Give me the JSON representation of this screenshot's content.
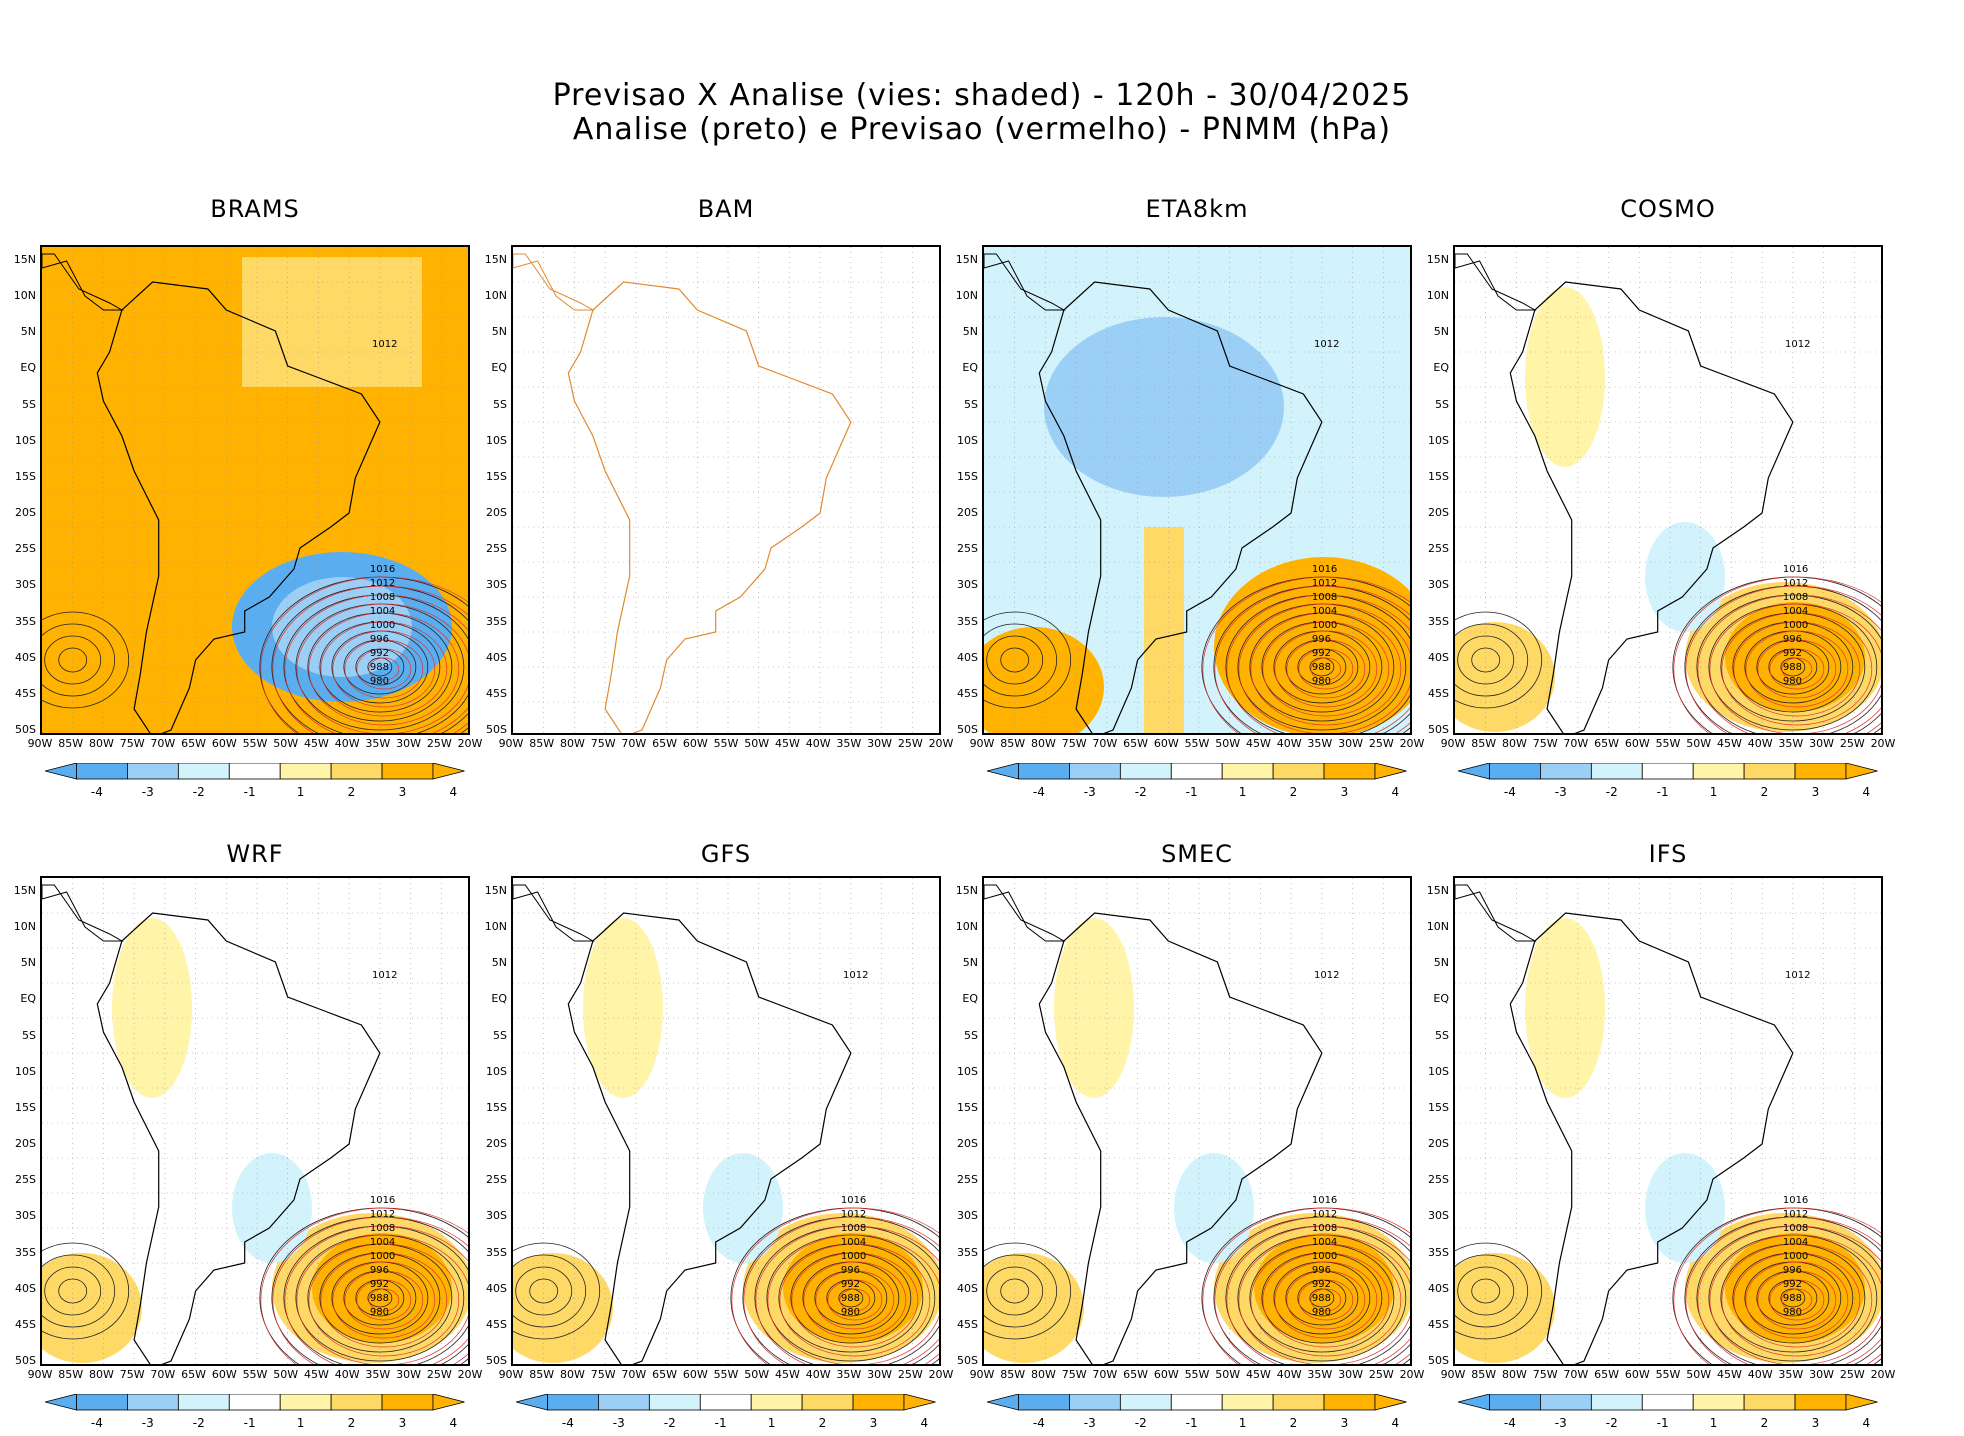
{
  "title_line1": "Previsao X Analise (vies: shaded) - 120h - 30/04/2025",
  "title_line2": "Analise (preto) e Previsao (vermelho) - PNMM (hPa)",
  "panels": [
    {
      "name": "BRAMS",
      "mode": "warm",
      "has_colorbar": true
    },
    {
      "name": "BAM",
      "mode": "blank",
      "has_colorbar": false
    },
    {
      "name": "ETA8km",
      "mode": "cool",
      "has_colorbar": true
    },
    {
      "name": "COSMO",
      "mode": "mixed",
      "has_colorbar": true
    },
    {
      "name": "WRF",
      "mode": "mixed",
      "has_colorbar": true
    },
    {
      "name": "GFS",
      "mode": "mixed",
      "has_colorbar": true
    },
    {
      "name": "SMEC",
      "mode": "mixed",
      "has_colorbar": true
    },
    {
      "name": "IFS",
      "mode": "mixed",
      "has_colorbar": true
    }
  ],
  "lat_labels": [
    "15N",
    "10N",
    "5N",
    "EQ",
    "5S",
    "10S",
    "15S",
    "20S",
    "25S",
    "30S",
    "35S",
    "40S",
    "45S",
    "50S"
  ],
  "lon_labels": [
    "90W",
    "85W",
    "80W",
    "75W",
    "70W",
    "65W",
    "60W",
    "55W",
    "50W",
    "45W",
    "40W",
    "35W",
    "30W",
    "25W",
    "20W"
  ],
  "colorbar_labels": [
    "-4",
    "-3",
    "-2",
    "-1",
    "1",
    "2",
    "3",
    "4"
  ],
  "colorbar_colors": [
    "#5aaef0",
    "#9ccff6",
    "#d2f3fb",
    "#ffffff",
    "#fff4a8",
    "#ffd966",
    "#ffb300"
  ],
  "isobar_labels": [
    "1016",
    "1012",
    "1008",
    "1004",
    "1000",
    "996",
    "992",
    "988",
    "980"
  ]
}
